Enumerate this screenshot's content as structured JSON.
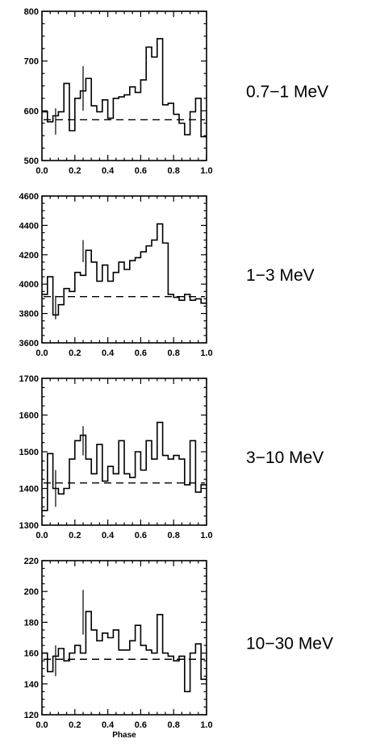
{
  "chart_data": [
    {
      "type": "line",
      "energy_label": "0.7−1 MeV",
      "xlabel": "",
      "xlim": [
        0.0,
        1.0
      ],
      "ylim": [
        500,
        800
      ],
      "xticks": [
        "0.0",
        "0.2",
        "0.4",
        "0.6",
        "0.8",
        "1.0"
      ],
      "yticks": [
        "500",
        "600",
        "700",
        "800"
      ],
      "background": 582,
      "bins": 30,
      "values": [
        598,
        578,
        590,
        598,
        655,
        560,
        625,
        640,
        665,
        610,
        598,
        622,
        585,
        625,
        628,
        632,
        648,
        637,
        662,
        728,
        708,
        745,
        612,
        615,
        593,
        575,
        552,
        598,
        625,
        548
      ],
      "error_bars": [
        {
          "x": 0.25,
          "low": 600,
          "high": 690
        },
        {
          "x": 0.083,
          "low": 552,
          "high": 605
        }
      ]
    },
    {
      "type": "line",
      "energy_label": "1−3 MeV",
      "xlabel": "",
      "xlim": [
        0.0,
        1.0
      ],
      "ylim": [
        3600,
        4600
      ],
      "xticks": [
        "0.0",
        "0.2",
        "0.4",
        "0.6",
        "0.8",
        "1.0"
      ],
      "yticks": [
        "3600",
        "3800",
        "4000",
        "4200",
        "4400",
        "4600"
      ],
      "background": 3915,
      "bins": 30,
      "values": [
        3930,
        4050,
        3790,
        3860,
        3970,
        3950,
        4080,
        4060,
        4230,
        4150,
        4020,
        4130,
        4020,
        4080,
        4150,
        4100,
        4160,
        4180,
        4220,
        4260,
        4300,
        4410,
        4280,
        3930,
        3910,
        3890,
        3930,
        3890,
        3900,
        3870
      ],
      "error_bars": [
        {
          "x": 0.25,
          "low": 4150,
          "high": 4300
        },
        {
          "x": 0.083,
          "low": 3760,
          "high": 3920
        }
      ]
    },
    {
      "type": "line",
      "energy_label": "3−10 MeV",
      "xlabel": "",
      "xlim": [
        0.0,
        1.0
      ],
      "ylim": [
        1300,
        1700
      ],
      "xticks": [
        "0.0",
        "0.2",
        "0.4",
        "0.6",
        "0.8",
        "1.0"
      ],
      "yticks": [
        "1300",
        "1400",
        "1500",
        "1600",
        "1700"
      ],
      "background": 1415,
      "bins": 30,
      "values": [
        1340,
        1495,
        1400,
        1385,
        1400,
        1480,
        1530,
        1545,
        1480,
        1440,
        1520,
        1420,
        1460,
        1440,
        1530,
        1440,
        1430,
        1500,
        1450,
        1530,
        1480,
        1580,
        1490,
        1480,
        1490,
        1480,
        1410,
        1530,
        1390,
        1410
      ],
      "error_bars": [
        {
          "x": 0.25,
          "low": 1490,
          "high": 1570
        },
        {
          "x": 0.083,
          "low": 1350,
          "high": 1450
        }
      ]
    },
    {
      "type": "line",
      "energy_label": "10−30 MeV",
      "xlabel": "Phase",
      "xlim": [
        0.0,
        1.0
      ],
      "ylim": [
        120,
        220
      ],
      "xticks": [
        "0.0",
        "0.2",
        "0.4",
        "0.6",
        "0.8",
        "1.0"
      ],
      "yticks": [
        "120",
        "140",
        "160",
        "180",
        "200",
        "220"
      ],
      "background": 156,
      "bins": 30,
      "values": [
        160,
        148,
        158,
        163,
        155,
        160,
        165,
        160,
        187,
        175,
        168,
        173,
        170,
        175,
        162,
        162,
        168,
        178,
        165,
        162,
        160,
        185,
        160,
        158,
        155,
        158,
        135,
        160,
        166,
        143
      ],
      "error_bars": [
        {
          "x": 0.25,
          "low": 172,
          "high": 201
        },
        {
          "x": 0.083,
          "low": 145,
          "high": 165
        }
      ]
    }
  ]
}
